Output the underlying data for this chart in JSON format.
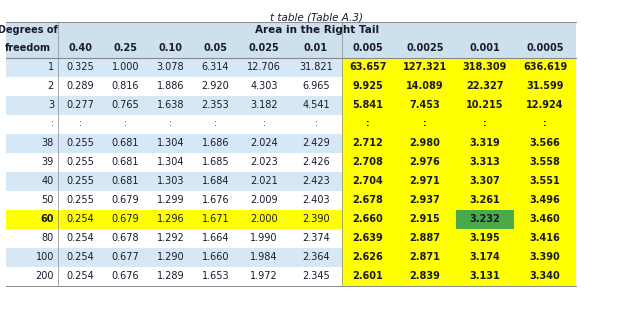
{
  "title": "t table (Table A.3)",
  "header2": [
    "freedom",
    "0.40",
    "0.25",
    "0.10",
    "0.05",
    "0.025",
    "0.01",
    "0.005",
    "0.0025",
    "0.001",
    "0.0005"
  ],
  "rows": [
    [
      "1",
      "0.325",
      "1.000",
      "3.078",
      "6.314",
      "12.706",
      "31.821",
      "63.657",
      "127.321",
      "318.309",
      "636.619"
    ],
    [
      "2",
      "0.289",
      "0.816",
      "1.886",
      "2.920",
      "4.303",
      "6.965",
      "9.925",
      "14.089",
      "22.327",
      "31.599"
    ],
    [
      "3",
      "0.277",
      "0.765",
      "1.638",
      "2.353",
      "3.182",
      "4.541",
      "5.841",
      "7.453",
      "10.215",
      "12.924"
    ],
    [
      ":",
      ":",
      ":",
      ":",
      ":",
      ":",
      ":",
      ":",
      ":",
      ":",
      ":"
    ],
    [
      "38",
      "0.255",
      "0.681",
      "1.304",
      "1.686",
      "2.024",
      "2.429",
      "2.712",
      "2.980",
      "3.319",
      "3.566"
    ],
    [
      "39",
      "0.255",
      "0.681",
      "1.304",
      "1.685",
      "2.023",
      "2.426",
      "2.708",
      "2.976",
      "3.313",
      "3.558"
    ],
    [
      "40",
      "0.255",
      "0.681",
      "1.303",
      "1.684",
      "2.021",
      "2.423",
      "2.704",
      "2.971",
      "3.307",
      "3.551"
    ],
    [
      "50",
      "0.255",
      "0.679",
      "1.299",
      "1.676",
      "2.009",
      "2.403",
      "2.678",
      "2.937",
      "3.261",
      "3.496"
    ],
    [
      "60",
      "0.254",
      "0.679",
      "1.296",
      "1.671",
      "2.000",
      "2.390",
      "2.660",
      "2.915",
      "3.232",
      "3.460"
    ],
    [
      "80",
      "0.254",
      "0.678",
      "1.292",
      "1.664",
      "1.990",
      "2.374",
      "2.639",
      "2.887",
      "3.195",
      "3.416"
    ],
    [
      "100",
      "0.254",
      "0.677",
      "1.290",
      "1.660",
      "1.984",
      "2.364",
      "2.626",
      "2.871",
      "3.174",
      "3.390"
    ],
    [
      "200",
      "0.254",
      "0.676",
      "1.289",
      "1.653",
      "1.972",
      "2.345",
      "2.601",
      "2.839",
      "3.131",
      "3.340"
    ]
  ],
  "blue_data_rows": [
    0,
    2,
    4,
    6,
    8,
    10
  ],
  "yellow_row_idx": 8,
  "yellow_data_cols": [
    7,
    8,
    9,
    10
  ],
  "green_cell": [
    8,
    9
  ],
  "bg_color": "#ffffff",
  "header_bg": "#cde0ed",
  "blue_color": "#d6e8f5",
  "yellow_color": "#ffff00",
  "green_color": "#4aaa4a",
  "text_color": "#1a1a2e"
}
